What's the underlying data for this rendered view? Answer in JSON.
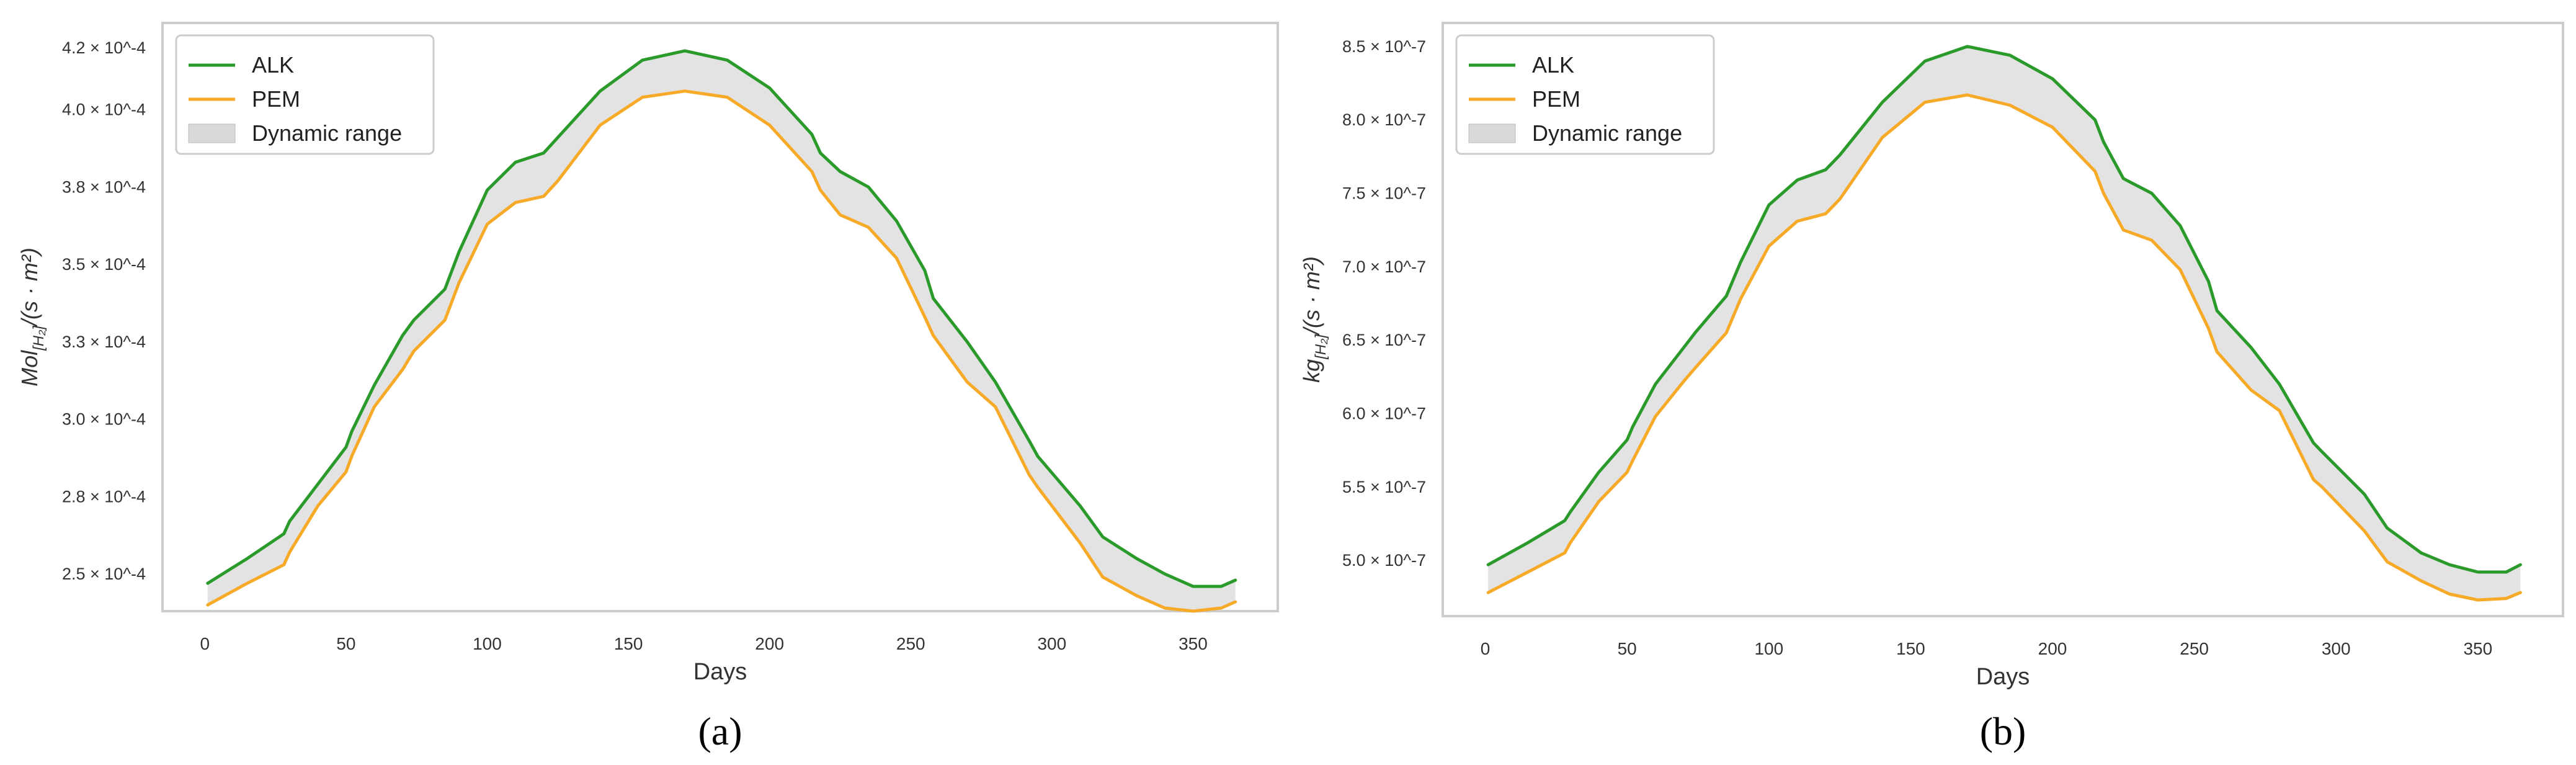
{
  "colors": {
    "alk": "#2a9a2a",
    "pem": "#f7a928",
    "band": "#d9d9d9",
    "frame": "#cccccc"
  },
  "chart_data": [
    {
      "panel_label": "(a)",
      "type": "line",
      "xlabel": "Days",
      "ylabel_base": "Mol",
      "ylabel_sub": "[H₂]",
      "ylabel_tail": "/(s · m²)",
      "xlim": [
        -15,
        380
      ],
      "ylim": [
        2.38,
        4.28
      ],
      "xticks": [
        0,
        50,
        100,
        150,
        200,
        250,
        300,
        350
      ],
      "xtick_labels": [
        "0",
        "50",
        "100",
        "150",
        "200",
        "250",
        "300",
        "350"
      ],
      "yticks": [
        2.5,
        2.75,
        3.0,
        3.25,
        3.5,
        3.75,
        4.0,
        4.2
      ],
      "ytick_labels": [
        "2.5 × 10^-4",
        "2.8 × 10^-4",
        "3.0 × 10^-4",
        "3.3 × 10^-4",
        "3.5 × 10^-4",
        "3.8 × 10^-4",
        "4.0 × 10^-4",
        "4.2 × 10^-4"
      ],
      "legend": [
        "ALK",
        "PEM",
        "Dynamic range"
      ],
      "legend_position": "top-left",
      "series": [
        {
          "name": "ALK",
          "x": [
            1,
            15,
            28,
            30,
            40,
            50,
            52,
            60,
            70,
            74,
            85,
            90,
            100,
            110,
            120,
            125,
            140,
            155,
            170,
            185,
            200,
            215,
            218,
            225,
            235,
            245,
            255,
            258,
            270,
            280,
            292,
            295,
            310,
            318,
            330,
            340,
            350,
            360,
            365
          ],
          "values": [
            2.47,
            2.55,
            2.63,
            2.67,
            2.79,
            2.91,
            2.96,
            3.11,
            3.27,
            3.32,
            3.42,
            3.54,
            3.74,
            3.83,
            3.86,
            3.91,
            4.06,
            4.16,
            4.19,
            4.16,
            4.07,
            3.92,
            3.86,
            3.8,
            3.75,
            3.64,
            3.48,
            3.39,
            3.25,
            3.12,
            2.93,
            2.88,
            2.72,
            2.62,
            2.55,
            2.5,
            2.46,
            2.46,
            2.48
          ]
        },
        {
          "name": "PEM",
          "x": [
            1,
            15,
            28,
            30,
            40,
            50,
            52,
            60,
            70,
            74,
            85,
            90,
            100,
            110,
            120,
            125,
            140,
            155,
            170,
            185,
            200,
            215,
            218,
            225,
            235,
            245,
            255,
            258,
            270,
            280,
            292,
            295,
            310,
            318,
            330,
            340,
            350,
            360,
            365
          ],
          "values": [
            2.4,
            2.47,
            2.53,
            2.57,
            2.72,
            2.83,
            2.88,
            3.04,
            3.16,
            3.22,
            3.32,
            3.44,
            3.63,
            3.7,
            3.72,
            3.77,
            3.95,
            4.04,
            4.06,
            4.04,
            3.95,
            3.8,
            3.74,
            3.66,
            3.62,
            3.52,
            3.33,
            3.27,
            3.12,
            3.04,
            2.82,
            2.78,
            2.6,
            2.49,
            2.43,
            2.39,
            2.38,
            2.39,
            2.41
          ]
        }
      ]
    },
    {
      "panel_label": "(b)",
      "type": "line",
      "xlabel": "Days",
      "ylabel_base": "kg",
      "ylabel_sub": "[H₂]",
      "ylabel_tail": "/(s · m²)",
      "xlim": [
        -15,
        380
      ],
      "ylim": [
        4.62,
        8.66
      ],
      "xticks": [
        0,
        50,
        100,
        150,
        200,
        250,
        300,
        350
      ],
      "xtick_labels": [
        "0",
        "50",
        "100",
        "150",
        "200",
        "250",
        "300",
        "350"
      ],
      "yticks": [
        5.0,
        5.5,
        6.0,
        6.5,
        7.0,
        7.5,
        8.0,
        8.5
      ],
      "ytick_labels": [
        "5.0 × 10^-7",
        "5.5 × 10^-7",
        "6.0 × 10^-7",
        "6.5 × 10^-7",
        "7.0 × 10^-7",
        "7.5 × 10^-7",
        "8.0 × 10^-7",
        "8.5 × 10^-7"
      ],
      "legend": [
        "ALK",
        "PEM",
        "Dynamic range"
      ],
      "legend_position": "top-left",
      "series": [
        {
          "name": "ALK",
          "x": [
            1,
            15,
            28,
            30,
            40,
            50,
            52,
            60,
            70,
            74,
            85,
            90,
            100,
            110,
            120,
            125,
            140,
            155,
            170,
            185,
            200,
            215,
            218,
            225,
            235,
            245,
            255,
            258,
            270,
            280,
            292,
            295,
            310,
            318,
            330,
            340,
            350,
            360,
            365
          ],
          "values": [
            4.97,
            5.12,
            5.27,
            5.33,
            5.6,
            5.82,
            5.91,
            6.2,
            6.45,
            6.55,
            6.8,
            7.03,
            7.42,
            7.59,
            7.66,
            7.76,
            8.12,
            8.4,
            8.5,
            8.44,
            8.28,
            8.0,
            7.85,
            7.6,
            7.5,
            7.28,
            6.9,
            6.7,
            6.45,
            6.2,
            5.8,
            5.74,
            5.45,
            5.22,
            5.05,
            4.97,
            4.92,
            4.92,
            4.97
          ]
        },
        {
          "name": "PEM",
          "x": [
            1,
            15,
            28,
            30,
            40,
            50,
            52,
            60,
            70,
            74,
            85,
            90,
            100,
            110,
            120,
            125,
            140,
            155,
            170,
            185,
            200,
            215,
            218,
            225,
            235,
            245,
            255,
            258,
            270,
            280,
            292,
            295,
            310,
            318,
            330,
            340,
            350,
            360,
            365
          ],
          "values": [
            4.78,
            4.92,
            5.05,
            5.12,
            5.4,
            5.6,
            5.68,
            5.98,
            6.22,
            6.31,
            6.55,
            6.78,
            7.14,
            7.31,
            7.36,
            7.46,
            7.88,
            8.12,
            8.17,
            8.1,
            7.95,
            7.65,
            7.5,
            7.25,
            7.18,
            6.98,
            6.58,
            6.42,
            6.16,
            6.02,
            5.55,
            5.5,
            5.2,
            4.99,
            4.86,
            4.77,
            4.73,
            4.74,
            4.78
          ]
        }
      ]
    }
  ]
}
